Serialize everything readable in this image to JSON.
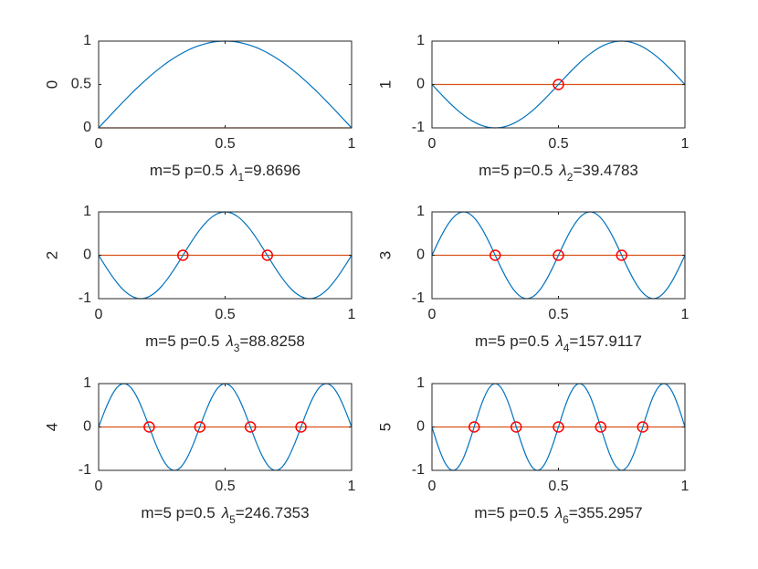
{
  "chart_data": [
    {
      "type": "line",
      "ylabel": "0",
      "xlabel": [
        "m=5 p=0.5",
        "λ",
        "1",
        "=9.8696"
      ],
      "xlim": [
        0,
        1
      ],
      "xticks": [
        0,
        0.5,
        1
      ],
      "ylim": [
        0,
        1
      ],
      "yticks": [
        0,
        0.5,
        1
      ],
      "x": [
        0,
        0.025,
        0.05,
        0.075,
        0.1,
        0.125,
        0.15,
        0.175,
        0.2,
        0.225,
        0.25,
        0.275,
        0.3,
        0.325,
        0.35,
        0.375,
        0.4,
        0.425,
        0.45,
        0.475,
        0.5,
        0.525,
        0.55,
        0.575,
        0.6,
        0.625,
        0.65,
        0.675,
        0.7,
        0.725,
        0.75,
        0.775,
        0.8,
        0.825,
        0.85,
        0.875,
        0.9,
        0.925,
        0.95,
        0.975,
        1
      ],
      "series": [
        {
          "color": "#0072bd",
          "values": [
            0,
            0.078,
            0.156,
            0.233,
            0.309,
            0.383,
            0.454,
            0.522,
            0.588,
            0.649,
            0.707,
            0.76,
            0.809,
            0.853,
            0.891,
            0.924,
            0.951,
            0.972,
            0.988,
            0.997,
            1,
            0.997,
            0.988,
            0.972,
            0.951,
            0.924,
            0.891,
            0.853,
            0.809,
            0.76,
            0.707,
            0.649,
            0.588,
            0.522,
            0.454,
            0.383,
            0.309,
            0.233,
            0.156,
            0.078,
            0
          ]
        }
      ],
      "reference_line": {
        "y": 0,
        "color": "#d95319"
      }
    },
    {
      "type": "line",
      "ylabel": "1",
      "xlabel": [
        "m=5 p=0.5",
        "λ",
        "2",
        "=39.4783"
      ],
      "xlim": [
        0,
        1
      ],
      "xticks": [
        0,
        0.5,
        1
      ],
      "ylim": [
        -1,
        1
      ],
      "yticks": [
        -1,
        0,
        1
      ],
      "x": [
        0,
        0.025,
        0.05,
        0.075,
        0.1,
        0.125,
        0.15,
        0.175,
        0.2,
        0.225,
        0.25,
        0.275,
        0.3,
        0.325,
        0.35,
        0.375,
        0.4,
        0.425,
        0.45,
        0.475,
        0.5,
        0.525,
        0.55,
        0.575,
        0.6,
        0.625,
        0.65,
        0.675,
        0.7,
        0.725,
        0.75,
        0.775,
        0.8,
        0.825,
        0.85,
        0.875,
        0.9,
        0.925,
        0.95,
        0.975,
        1
      ],
      "series": [
        {
          "color": "#0072bd",
          "values": [
            0,
            -0.156,
            -0.309,
            -0.454,
            -0.588,
            -0.707,
            -0.809,
            -0.891,
            -0.951,
            -0.988,
            -1,
            -0.988,
            -0.951,
            -0.891,
            -0.809,
            -0.707,
            -0.588,
            -0.454,
            -0.309,
            -0.156,
            0,
            0.156,
            0.309,
            0.454,
            0.588,
            0.707,
            0.809,
            0.891,
            0.951,
            0.988,
            1,
            0.988,
            0.951,
            0.891,
            0.809,
            0.707,
            0.588,
            0.454,
            0.309,
            0.156,
            0
          ]
        }
      ],
      "reference_line": {
        "y": 0,
        "color": "#d95319"
      },
      "markers": {
        "color": "#ff0000",
        "x": [
          0.5
        ],
        "y": [
          0
        ]
      }
    },
    {
      "type": "line",
      "ylabel": "2",
      "xlabel": [
        "m=5 p=0.5",
        "λ",
        "3",
        "=88.8258"
      ],
      "xlim": [
        0,
        1
      ],
      "xticks": [
        0,
        0.5,
        1
      ],
      "ylim": [
        -1,
        1
      ],
      "yticks": [
        -1,
        0,
        1
      ],
      "x": [
        0,
        0.025,
        0.05,
        0.075,
        0.1,
        0.125,
        0.15,
        0.175,
        0.2,
        0.225,
        0.25,
        0.275,
        0.3,
        0.325,
        0.35,
        0.375,
        0.4,
        0.425,
        0.45,
        0.475,
        0.5,
        0.525,
        0.55,
        0.575,
        0.6,
        0.625,
        0.65,
        0.675,
        0.7,
        0.725,
        0.75,
        0.775,
        0.8,
        0.825,
        0.85,
        0.875,
        0.9,
        0.925,
        0.95,
        0.975,
        1
      ],
      "series": [
        {
          "color": "#0072bd",
          "values": [
            0,
            -0.233,
            -0.454,
            -0.649,
            -0.809,
            -0.924,
            -0.988,
            -0.997,
            -0.951,
            -0.853,
            -0.707,
            -0.522,
            -0.309,
            -0.078,
            0.156,
            0.383,
            0.588,
            0.76,
            0.891,
            0.972,
            1,
            0.972,
            0.891,
            0.76,
            0.588,
            0.383,
            0.156,
            -0.078,
            -0.309,
            -0.522,
            -0.707,
            -0.853,
            -0.951,
            -0.997,
            -0.988,
            -0.924,
            -0.809,
            -0.649,
            -0.454,
            -0.233,
            0
          ]
        }
      ],
      "reference_line": {
        "y": 0,
        "color": "#d95319"
      },
      "markers": {
        "color": "#ff0000",
        "x": [
          0.333,
          0.667
        ],
        "y": [
          0,
          0
        ]
      }
    },
    {
      "type": "line",
      "ylabel": "3",
      "xlabel": [
        "m=5 p=0.5",
        "λ",
        "4",
        "=157.9117"
      ],
      "xlim": [
        0,
        1
      ],
      "xticks": [
        0,
        0.5,
        1
      ],
      "ylim": [
        -1,
        1
      ],
      "yticks": [
        -1,
        0,
        1
      ],
      "x": [
        0,
        0.025,
        0.05,
        0.075,
        0.1,
        0.125,
        0.15,
        0.175,
        0.2,
        0.225,
        0.25,
        0.275,
        0.3,
        0.325,
        0.35,
        0.375,
        0.4,
        0.425,
        0.45,
        0.475,
        0.5,
        0.525,
        0.55,
        0.575,
        0.6,
        0.625,
        0.65,
        0.675,
        0.7,
        0.725,
        0.75,
        0.775,
        0.8,
        0.825,
        0.85,
        0.875,
        0.9,
        0.925,
        0.95,
        0.975,
        1
      ],
      "series": [
        {
          "color": "#0072bd",
          "values": [
            0,
            0.309,
            0.588,
            0.809,
            0.951,
            1,
            0.951,
            0.809,
            0.588,
            0.309,
            0,
            -0.309,
            -0.588,
            -0.809,
            -0.951,
            -1,
            -0.951,
            -0.809,
            -0.588,
            -0.309,
            0,
            0.309,
            0.588,
            0.809,
            0.951,
            1,
            0.951,
            0.809,
            0.588,
            0.309,
            0,
            -0.309,
            -0.588,
            -0.809,
            -0.951,
            -1,
            -0.951,
            -0.809,
            -0.588,
            -0.309,
            0
          ]
        }
      ],
      "reference_line": {
        "y": 0,
        "color": "#d95319"
      },
      "markers": {
        "color": "#ff0000",
        "x": [
          0.25,
          0.5,
          0.75
        ],
        "y": [
          0,
          0,
          0
        ]
      }
    },
    {
      "type": "line",
      "ylabel": "4",
      "xlabel": [
        "m=5 p=0.5",
        "λ",
        "5",
        "=246.7353"
      ],
      "xlim": [
        0,
        1
      ],
      "xticks": [
        0,
        0.5,
        1
      ],
      "ylim": [
        -1,
        1
      ],
      "yticks": [
        -1,
        0,
        1
      ],
      "x": [
        0,
        0.025,
        0.05,
        0.075,
        0.1,
        0.125,
        0.15,
        0.175,
        0.2,
        0.225,
        0.25,
        0.275,
        0.3,
        0.325,
        0.35,
        0.375,
        0.4,
        0.425,
        0.45,
        0.475,
        0.5,
        0.525,
        0.55,
        0.575,
        0.6,
        0.625,
        0.65,
        0.675,
        0.7,
        0.725,
        0.75,
        0.775,
        0.8,
        0.825,
        0.85,
        0.875,
        0.9,
        0.925,
        0.95,
        0.975,
        1
      ],
      "series": [
        {
          "color": "#0072bd",
          "values": [
            0,
            0.383,
            0.707,
            0.924,
            1,
            0.924,
            0.707,
            0.383,
            0,
            -0.383,
            -0.707,
            -0.924,
            -1,
            -0.924,
            -0.707,
            -0.383,
            0,
            0.383,
            0.707,
            0.924,
            1,
            0.924,
            0.707,
            0.383,
            0,
            -0.383,
            -0.707,
            -0.924,
            -1,
            -0.924,
            -0.707,
            -0.383,
            0,
            0.383,
            0.707,
            0.924,
            1,
            0.924,
            0.707,
            0.383,
            0
          ]
        }
      ],
      "reference_line": {
        "y": 0,
        "color": "#d95319"
      },
      "markers": {
        "color": "#ff0000",
        "x": [
          0.2,
          0.4,
          0.6,
          0.8
        ],
        "y": [
          0,
          0,
          0,
          0
        ]
      }
    },
    {
      "type": "line",
      "ylabel": "5",
      "xlabel": [
        "m=5 p=0.5",
        "λ",
        "6",
        "=355.2957"
      ],
      "xlim": [
        0,
        1
      ],
      "xticks": [
        0,
        0.5,
        1
      ],
      "ylim": [
        -1,
        1
      ],
      "yticks": [
        -1,
        0,
        1
      ],
      "x": [
        0,
        0.025,
        0.05,
        0.075,
        0.1,
        0.125,
        0.15,
        0.175,
        0.2,
        0.225,
        0.25,
        0.275,
        0.3,
        0.325,
        0.35,
        0.375,
        0.4,
        0.425,
        0.45,
        0.475,
        0.5,
        0.525,
        0.55,
        0.575,
        0.6,
        0.625,
        0.65,
        0.675,
        0.7,
        0.725,
        0.75,
        0.775,
        0.8,
        0.825,
        0.85,
        0.875,
        0.9,
        0.925,
        0.95,
        0.975,
        1
      ],
      "series": [
        {
          "color": "#0072bd",
          "values": [
            0,
            -0.454,
            -0.809,
            -0.988,
            -0.951,
            -0.707,
            -0.309,
            0.156,
            0.588,
            0.891,
            1,
            0.891,
            0.588,
            0.156,
            -0.309,
            -0.707,
            -0.951,
            -0.988,
            -0.809,
            -0.454,
            0,
            0.454,
            0.809,
            0.988,
            0.951,
            0.707,
            0.309,
            -0.156,
            -0.588,
            -0.891,
            -1,
            -0.891,
            -0.588,
            -0.156,
            0.309,
            0.707,
            0.951,
            0.988,
            0.809,
            0.454,
            0
          ]
        }
      ],
      "reference_line": {
        "y": 0,
        "color": "#d95319"
      },
      "markers": {
        "color": "#ff0000",
        "x": [
          0.167,
          0.333,
          0.5,
          0.667,
          0.833
        ],
        "y": [
          0,
          0,
          0,
          0,
          0
        ]
      }
    }
  ]
}
